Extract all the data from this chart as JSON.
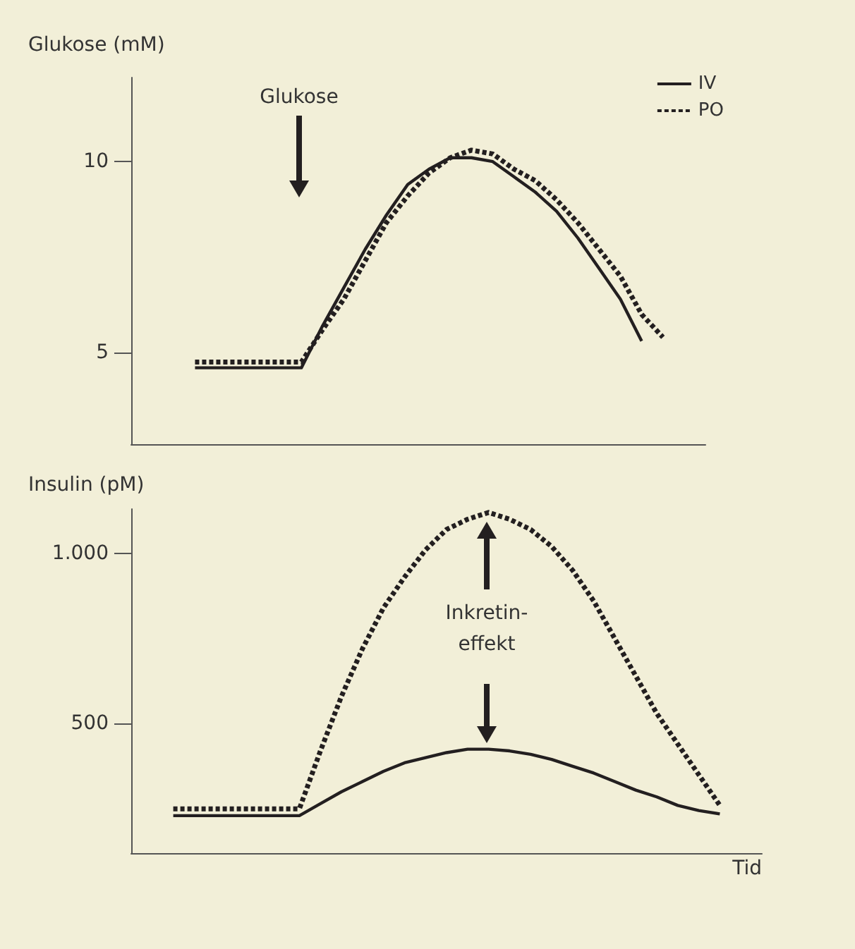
{
  "chart_data": [
    {
      "type": "line",
      "ylabel": "Glukose (mM)",
      "annotations": [
        "Glukose"
      ],
      "categories": [
        null,
        null,
        null,
        null,
        null,
        null,
        null,
        null,
        null,
        null,
        null,
        null,
        null,
        null,
        null,
        null,
        null,
        null,
        null,
        null,
        null,
        null,
        null,
        null,
        null,
        null,
        null,
        null
      ],
      "series": [
        {
          "name": "IV",
          "color": "#231f20",
          "line_style": "solid",
          "values": [
            null,
            null,
            null,
            4.6,
            4.6,
            4.6,
            4.6,
            4.6,
            4.6,
            5.7,
            6.7,
            7.7,
            8.6,
            9.4,
            9.8,
            10.1,
            10.1,
            10.0,
            9.6,
            9.2,
            8.7,
            8.0,
            7.2,
            6.4,
            5.3,
            null,
            null,
            null
          ]
        },
        {
          "name": "PO",
          "color": "#231f20",
          "line_style": "dotted",
          "values": [
            null,
            null,
            null,
            4.75,
            4.75,
            4.75,
            4.75,
            4.75,
            4.75,
            5.6,
            6.4,
            7.4,
            8.4,
            9.1,
            9.7,
            10.1,
            10.3,
            10.2,
            9.8,
            9.5,
            9.0,
            8.4,
            7.7,
            7.0,
            6.0,
            5.4,
            null,
            null
          ]
        }
      ],
      "ylim": [
        2.6,
        12.2
      ],
      "yticks": [
        5,
        10
      ],
      "legend": "top right",
      "grid": false,
      "marker": "none"
    },
    {
      "type": "line",
      "ylabel": "Insulin (pM)",
      "xlabel": "Tid",
      "annotations": [
        "Inkretin-\neffekt"
      ],
      "categories": [
        null,
        null,
        null,
        null,
        null,
        null,
        null,
        null,
        null,
        null,
        null,
        null,
        null,
        null,
        null,
        null,
        null,
        null,
        null,
        null,
        null,
        null,
        null,
        null,
        null,
        null,
        null,
        null,
        null,
        null,
        null
      ],
      "series": [
        {
          "color": "#231f20",
          "line_style": "solid",
          "values": [
            null,
            null,
            230,
            230,
            230,
            230,
            230,
            230,
            230,
            265,
            300,
            330,
            360,
            385,
            400,
            415,
            425,
            425,
            420,
            410,
            395,
            375,
            355,
            330,
            305,
            285,
            260,
            245,
            235,
            null,
            null
          ]
        },
        {
          "color": "#231f20",
          "line_style": "dotted",
          "values": [
            null,
            null,
            250,
            250,
            250,
            250,
            250,
            250,
            250,
            420,
            580,
            720,
            840,
            930,
            1010,
            1070,
            1100,
            1120,
            1100,
            1070,
            1020,
            950,
            860,
            750,
            640,
            530,
            440,
            350,
            260,
            null,
            null
          ]
        }
      ],
      "ylim": [
        120,
        1130
      ],
      "yticks": [
        {
          "value": 500,
          "label": "500"
        },
        {
          "value": 1000,
          "label": "1.000"
        }
      ],
      "grid": false,
      "marker": "none"
    }
  ]
}
